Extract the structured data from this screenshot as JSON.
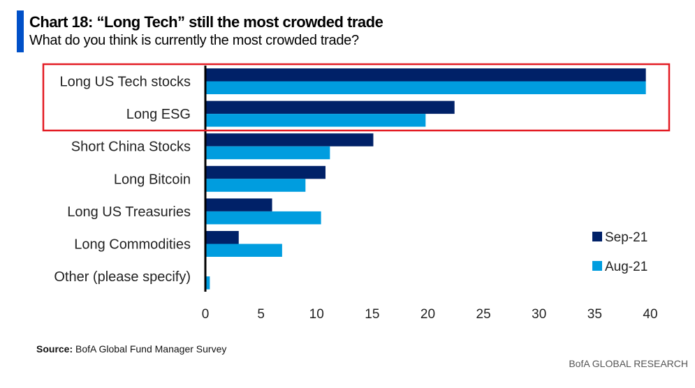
{
  "header": {
    "title": "Chart 18: “Long Tech” still the most crowded trade",
    "subtitle": "What do you think is currently the most crowded trade?"
  },
  "colors": {
    "accent": "#0050c8",
    "sep21": "#002168",
    "aug21": "#009ddf",
    "highlight_box": "#e31b23"
  },
  "chart_data": {
    "type": "bar",
    "orientation": "horizontal",
    "title": "Chart 18: “Long Tech” still the most crowded trade",
    "subtitle": "What do you think is currently the most crowded trade?",
    "categories": [
      "Long US Tech stocks",
      "Long ESG",
      "Short China Stocks",
      "Long Bitcoin",
      "Long US Treasuries",
      "Long Commodities",
      "Other (please specify)"
    ],
    "series": [
      {
        "name": "Sep-21",
        "values": [
          39.6,
          22.4,
          15.1,
          10.8,
          6.0,
          3.0,
          0.0
        ]
      },
      {
        "name": "Aug-21",
        "values": [
          39.6,
          19.8,
          11.2,
          9.0,
          10.4,
          6.9,
          0.4
        ]
      }
    ],
    "xlabel": "",
    "ylabel": "",
    "xlim": [
      0,
      40
    ],
    "xticks": [
      "0",
      "5",
      "10",
      "15",
      "20",
      "25",
      "30",
      "35",
      "40"
    ],
    "grid": false,
    "legend": "bottom-right",
    "highlight": {
      "categories": [
        "Long US Tech stocks",
        "Long ESG"
      ],
      "style": "red box"
    }
  },
  "footer": {
    "source_label": "Source:",
    "source_text": "BofA Global Fund Manager Survey",
    "brand": "BofA GLOBAL RESEARCH"
  }
}
